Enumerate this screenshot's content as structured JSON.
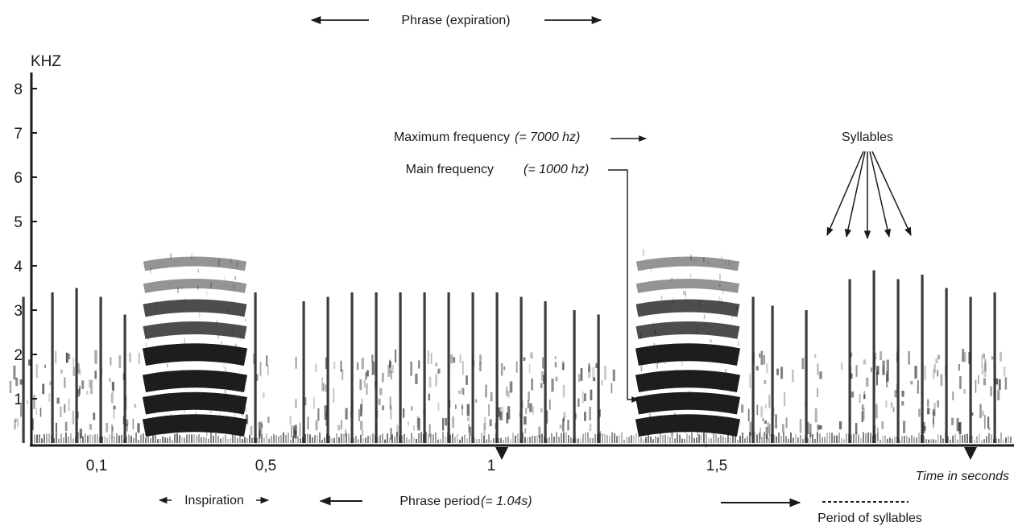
{
  "chart_data": {
    "type": "spectrogram",
    "title": "Phrase (expiration)",
    "xlabel": "Time in seconds",
    "ylabel": "KHZ",
    "xlim": [
      0,
      1.7
    ],
    "ylim": [
      0,
      8
    ],
    "yticks": [
      {
        "value": 1,
        "label": "1"
      },
      {
        "value": 2,
        "label": "2"
      },
      {
        "value": 3,
        "label": "3"
      },
      {
        "value": 4,
        "label": "4"
      },
      {
        "value": 5,
        "label": "5"
      },
      {
        "value": 6,
        "label": "6"
      },
      {
        "value": 7,
        "label": "7"
      },
      {
        "value": 8,
        "label": "8"
      }
    ],
    "xticks": [
      {
        "value": 0.1,
        "label": "0,1"
      },
      {
        "value": 0.5,
        "label": "0,5"
      },
      {
        "value": 1.0,
        "label": "1"
      },
      {
        "value": 1.5,
        "label": "1,5"
      }
    ],
    "tick_markers": [
      1.0,
      1.97
    ],
    "harmonic_blocks": [
      {
        "t0": 0.29,
        "t1": 0.5,
        "fmax": 4.4,
        "bands": [
          0.45,
          0.95,
          1.45,
          2.05,
          2.6,
          3.1,
          3.6,
          4.1
        ]
      },
      {
        "t0": 1.31,
        "t1": 1.52,
        "fmax": 4.4,
        "bands": [
          0.45,
          0.95,
          1.45,
          2.05,
          2.6,
          3.1,
          3.6,
          4.1
        ]
      }
    ],
    "syllable_clicks": [
      {
        "t": 0.04,
        "top": 3.3
      },
      {
        "t": 0.1,
        "top": 3.4
      },
      {
        "t": 0.15,
        "top": 3.5
      },
      {
        "t": 0.2,
        "top": 3.3
      },
      {
        "t": 0.25,
        "top": 2.9
      },
      {
        "t": 0.52,
        "top": 3.4
      },
      {
        "t": 0.62,
        "top": 3.2
      },
      {
        "t": 0.67,
        "top": 3.3
      },
      {
        "t": 0.72,
        "top": 3.4
      },
      {
        "t": 0.77,
        "top": 3.4
      },
      {
        "t": 0.82,
        "top": 3.4
      },
      {
        "t": 0.87,
        "top": 3.4
      },
      {
        "t": 0.92,
        "top": 3.4
      },
      {
        "t": 0.97,
        "top": 3.4
      },
      {
        "t": 1.02,
        "top": 3.4
      },
      {
        "t": 1.07,
        "top": 3.3
      },
      {
        "t": 1.12,
        "top": 3.2
      },
      {
        "t": 1.18,
        "top": 3.0
      },
      {
        "t": 1.23,
        "top": 2.9
      },
      {
        "t": 1.55,
        "top": 3.3
      },
      {
        "t": 1.59,
        "top": 3.1
      },
      {
        "t": 1.66,
        "top": 3.0
      },
      {
        "t": 1.75,
        "top": 3.7
      },
      {
        "t": 1.8,
        "top": 3.9
      },
      {
        "t": 1.85,
        "top": 3.7
      },
      {
        "t": 1.9,
        "top": 3.8
      },
      {
        "t": 1.95,
        "top": 3.5
      },
      {
        "t": 2.0,
        "top": 3.3
      },
      {
        "t": 2.05,
        "top": 3.4
      },
      {
        "t": 2.1,
        "top": 3.2
      },
      {
        "t": 2.15,
        "top": 3.3
      }
    ],
    "annotations": {
      "max_freq": {
        "label": "Maximum frequency",
        "value": "(= 7000 hz)"
      },
      "main_freq": {
        "label": "Main frequency",
        "value": "(= 1000 hz)"
      },
      "syllables": "Syllables",
      "inspiration": "Inspiration",
      "phrase_period": {
        "label": "Phrase period",
        "value": "(= 1.04s)"
      },
      "period_of_syllables": "Period of syllables"
    }
  }
}
